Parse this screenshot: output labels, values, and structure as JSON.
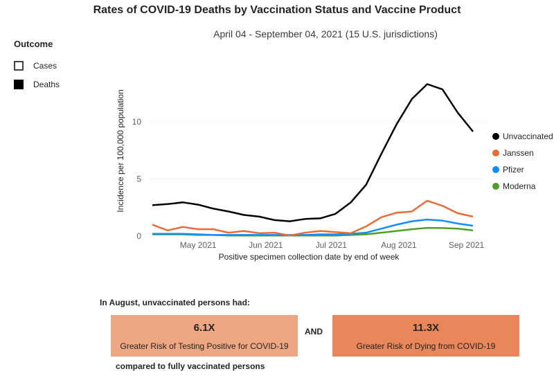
{
  "header": {
    "title": "Rates of COVID-19 Deaths by Vaccination Status and Vaccine Product",
    "subtitle": "April 04 - September 04, 2021 (15 U.S. jurisdictions)"
  },
  "slicer": {
    "title": "Outcome",
    "options": [
      {
        "label": "Cases",
        "checked": false
      },
      {
        "label": "Deaths",
        "checked": true
      }
    ]
  },
  "chart_data": {
    "type": "line",
    "title": "Rates of COVID-19 Deaths by Vaccination Status and Vaccine Product",
    "xlabel": "Positive specimen collection date by end of week",
    "ylabel": "Incidence per 100,000 population",
    "ylim": [
      0,
      14
    ],
    "yticks": [
      0,
      5,
      10
    ],
    "grid": true,
    "legend_position": "right",
    "x_dates": [
      "2021-04-10",
      "2021-04-17",
      "2021-04-24",
      "2021-05-01",
      "2021-05-08",
      "2021-05-15",
      "2021-05-22",
      "2021-05-29",
      "2021-06-05",
      "2021-06-12",
      "2021-06-19",
      "2021-06-26",
      "2021-07-03",
      "2021-07-10",
      "2021-07-17",
      "2021-07-24",
      "2021-07-31",
      "2021-08-07",
      "2021-08-14",
      "2021-08-21",
      "2021-08-28",
      "2021-09-04"
    ],
    "xticks": [
      {
        "label": "May 2021",
        "date": "2021-05-01"
      },
      {
        "label": "Jun 2021",
        "date": "2021-06-01"
      },
      {
        "label": "Jul 2021",
        "date": "2021-07-01"
      },
      {
        "label": "Aug 2021",
        "date": "2021-08-01"
      },
      {
        "label": "Sep 2021",
        "date": "2021-09-01"
      }
    ],
    "series": [
      {
        "name": "Unvaccinated",
        "color": "#000000",
        "values": [
          2.7,
          2.8,
          2.95,
          2.75,
          2.4,
          2.15,
          1.85,
          1.7,
          1.4,
          1.3,
          1.5,
          1.55,
          1.95,
          2.95,
          4.5,
          7.2,
          9.8,
          12.0,
          13.3,
          12.85,
          10.8,
          9.15
        ]
      },
      {
        "name": "Janssen",
        "color": "#E66C37",
        "values": [
          1.0,
          0.5,
          0.8,
          0.6,
          0.6,
          0.3,
          0.45,
          0.25,
          0.3,
          0.05,
          0.3,
          0.45,
          0.35,
          0.25,
          0.85,
          1.65,
          2.05,
          2.15,
          3.1,
          2.65,
          2.0,
          1.7
        ]
      },
      {
        "name": "Pfizer",
        "color": "#118DFF",
        "values": [
          0.2,
          0.2,
          0.2,
          0.15,
          0.1,
          0.1,
          0.1,
          0.1,
          0.1,
          0.1,
          0.1,
          0.15,
          0.15,
          0.2,
          0.3,
          0.65,
          1.0,
          1.3,
          1.45,
          1.35,
          1.1,
          0.9
        ]
      },
      {
        "name": "Moderna",
        "color": "#4CA125",
        "values": [
          0.15,
          0.15,
          0.15,
          0.1,
          0.1,
          0.05,
          0.05,
          0.05,
          0.05,
          0.05,
          0.05,
          0.05,
          0.05,
          0.1,
          0.15,
          0.3,
          0.45,
          0.6,
          0.72,
          0.7,
          0.65,
          0.5
        ]
      }
    ]
  },
  "summary": {
    "heading": "In August, unvaccinated persons had:",
    "connector": "AND",
    "footer": "compared to fully vaccinated persons",
    "cards": [
      {
        "value": "6.1X",
        "description": "Greater Risk of Testing Positive for COVID-19",
        "color": "#EFA682"
      },
      {
        "value": "11.3X",
        "description": "Greater Risk of Dying from COVID-19",
        "color": "#E9865A"
      }
    ]
  }
}
